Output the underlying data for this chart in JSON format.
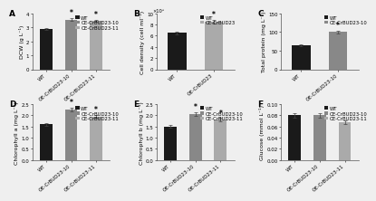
{
  "panel_A": {
    "label": "A",
    "ylabel": "DCW (g L⁻¹)",
    "categories": [
      "WT",
      "OE-CrBUD23-10",
      "OE-CrBUD23-11"
    ],
    "values": [
      2.9,
      3.55,
      3.45
    ],
    "errors": [
      0.08,
      0.1,
      0.08
    ],
    "colors": [
      "#1a1a1a",
      "#888888",
      "#aaaaaa"
    ],
    "ylim": [
      0,
      4
    ],
    "yticks": [
      0,
      1,
      2,
      3,
      4
    ],
    "sig": [
      false,
      true,
      true
    ],
    "legend": [
      "WT",
      "OE-CrBUD23-10",
      "OE-CrBUD23-11"
    ],
    "n_bars": 3
  },
  "panel_B": {
    "label": "B",
    "ylabel": "Cell density (cell ml⁻¹)",
    "categories": [
      "WT",
      "OE-CrBUD23"
    ],
    "values": [
      6500000,
      8500000
    ],
    "errors": [
      200000,
      250000
    ],
    "colors": [
      "#1a1a1a",
      "#aaaaaa"
    ],
    "ylim": [
      0,
      10000000.0
    ],
    "yticks": [
      0,
      2000000,
      4000000,
      6000000,
      8000000,
      10000000
    ],
    "sig": [
      false,
      true
    ],
    "legend": [
      "WT",
      "OE-CrBUD23"
    ],
    "n_bars": 2
  },
  "panel_C": {
    "label": "C",
    "ylabel": "Total protein (mg L⁻¹)",
    "categories": [
      "WT",
      "OE-CrBUD23-10"
    ],
    "values": [
      65,
      100
    ],
    "errors": [
      3,
      3
    ],
    "colors": [
      "#1a1a1a",
      "#888888"
    ],
    "ylim": [
      0,
      150
    ],
    "yticks": [
      0,
      50,
      100,
      150
    ],
    "sig": [
      false,
      true
    ],
    "legend": [
      "WT",
      "OE-CrBUD23-10"
    ],
    "n_bars": 2
  },
  "panel_D": {
    "label": "D",
    "ylabel": "Chlorophyll a (mg L⁻¹)",
    "categories": [
      "WT",
      "OE-CrBUD23-10",
      "OE-CrBUD23-11"
    ],
    "values": [
      1.6,
      2.25,
      1.95
    ],
    "errors": [
      0.06,
      0.08,
      0.07
    ],
    "colors": [
      "#1a1a1a",
      "#888888",
      "#aaaaaa"
    ],
    "ylim": [
      0,
      2.5
    ],
    "yticks": [
      0.0,
      0.5,
      1.0,
      1.5,
      2.0,
      2.5
    ],
    "sig": [
      false,
      true,
      true
    ],
    "legend": [
      "WT",
      "OE-CrBUD23-10",
      "OE-CrBUD23-11"
    ],
    "n_bars": 3
  },
  "panel_E": {
    "label": "E",
    "ylabel": "Chlorophyll b (mg L⁻¹)",
    "categories": [
      "WT",
      "OE-CrBUD23-10",
      "OE-CrBUD23-11"
    ],
    "values": [
      1.5,
      2.05,
      1.8
    ],
    "errors": [
      0.06,
      0.07,
      0.07
    ],
    "colors": [
      "#1a1a1a",
      "#888888",
      "#aaaaaa"
    ],
    "ylim": [
      0,
      2.5
    ],
    "yticks": [
      0.0,
      0.5,
      1.0,
      1.5,
      2.0,
      2.5
    ],
    "sig": [
      false,
      true,
      true
    ],
    "legend": [
      "WT",
      "OE-CrBUD23-10",
      "OE-CrBUD23-11"
    ],
    "n_bars": 3
  },
  "panel_F": {
    "label": "F",
    "ylabel": "Glucose (mmol L⁻¹)",
    "categories": [
      "WT",
      "OE-CrBUD23-10",
      "OE-CrBUD23-11"
    ],
    "values": [
      0.08,
      0.08,
      0.067
    ],
    "errors": [
      0.004,
      0.004,
      0.003
    ],
    "colors": [
      "#1a1a1a",
      "#888888",
      "#aaaaaa"
    ],
    "ylim": [
      0.0,
      0.1
    ],
    "yticks": [
      0.0,
      0.02,
      0.04,
      0.06,
      0.08,
      0.1
    ],
    "sig": [
      false,
      false,
      false
    ],
    "legend": [
      "WT",
      "OE-CrBUD23-10",
      "OE-CrBUD23-11"
    ],
    "n_bars": 3
  },
  "bg_color": "#efefef",
  "bar_width": 0.5,
  "fontsize_ylabel": 4.5,
  "fontsize_tick": 4.0,
  "fontsize_panel": 6.5,
  "fontsize_legend": 3.8,
  "fontsize_sig": 5.5,
  "error_capsize": 1.2,
  "error_lw": 0.5
}
